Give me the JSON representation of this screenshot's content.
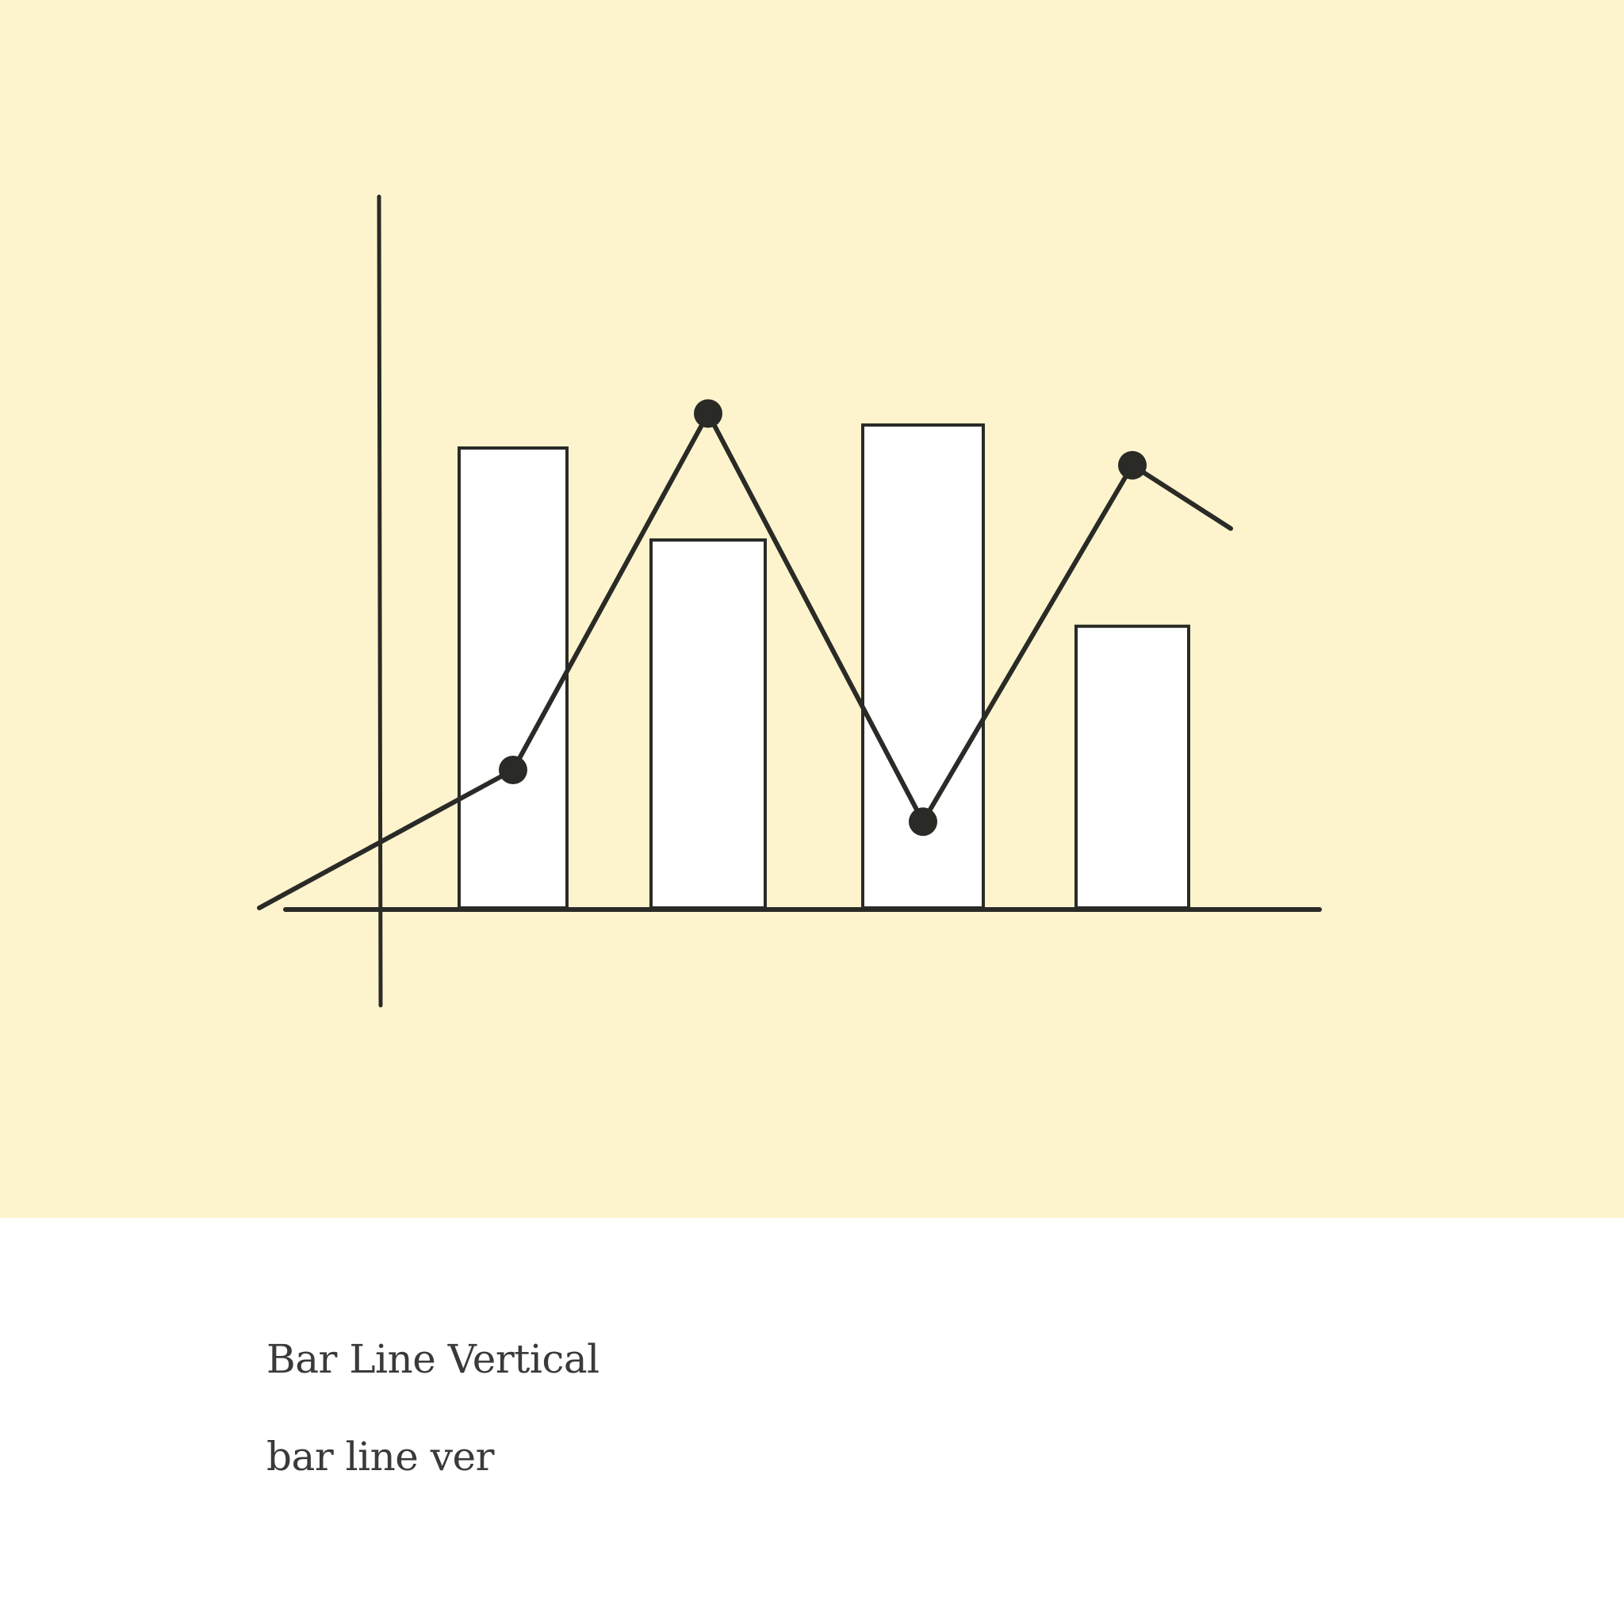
{
  "card": {
    "background_color": "#fdf4ce",
    "ink_color": "#2a2a26",
    "bar_fill": "#ffffff",
    "illustration_icon": "bar-line-vertical-icon",
    "title": "Bar Line Vertical",
    "subtitle": "bar line ver"
  },
  "illustration": {
    "type": "bar+line",
    "bars": [
      0.8,
      0.64,
      0.84,
      0.49
    ],
    "line_points": [
      0.24,
      0.86,
      0.15,
      0.77
    ],
    "line_start": 0.0,
    "line_end": 0.66
  }
}
